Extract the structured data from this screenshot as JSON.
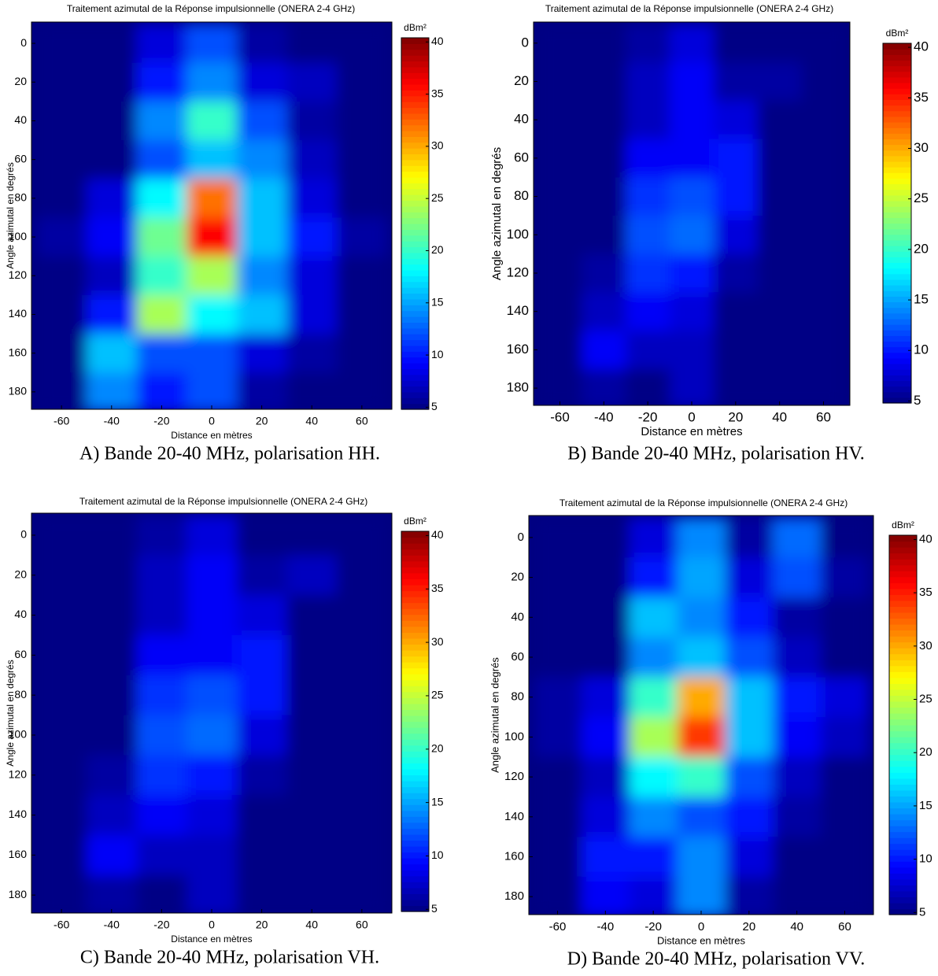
{
  "chart_data": [
    {
      "type": "heatmap",
      "title": "Traitement azimutal de la Réponse impulsionnelle  (ONERA 2-4 GHz)",
      "x_label": "Distance en mètres",
      "y_label": "Angle azimutal en degrés",
      "colorbar_label": "dBm²",
      "caption": "A) Bande 20-40 MHz, polarisation HH.",
      "colormap": "jet",
      "xlim": [
        -72,
        72
      ],
      "ylim": [
        -11,
        189
      ],
      "y_inverted": true,
      "clim": [
        4.8,
        40.4
      ],
      "xticks": [
        -60,
        -40,
        -20,
        0,
        20,
        40,
        60
      ],
      "yticks": [
        0,
        20,
        40,
        60,
        80,
        100,
        120,
        140,
        160,
        180
      ],
      "cticks": [
        5,
        10,
        15,
        20,
        25,
        30,
        35,
        40
      ],
      "x": [
        -60,
        -40,
        -20,
        0,
        20,
        40,
        60
      ],
      "y": [
        0,
        20,
        40,
        60,
        80,
        100,
        120,
        140,
        160,
        180
      ],
      "z": [
        [
          5,
          5,
          8,
          12,
          6,
          5,
          5
        ],
        [
          5,
          5,
          10,
          14,
          8,
          7,
          5
        ],
        [
          5,
          5,
          14,
          20,
          12,
          6,
          5
        ],
        [
          5,
          5,
          12,
          16,
          14,
          7,
          5
        ],
        [
          5,
          8,
          18,
          32,
          16,
          8,
          5
        ],
        [
          6,
          9,
          22,
          36,
          16,
          10,
          6
        ],
        [
          5,
          7,
          20,
          24,
          14,
          8,
          5
        ],
        [
          5,
          10,
          24,
          18,
          16,
          8,
          5
        ],
        [
          5,
          16,
          12,
          12,
          8,
          6,
          5
        ],
        [
          5,
          14,
          10,
          12,
          6,
          5,
          5
        ]
      ]
    },
    {
      "type": "heatmap",
      "title": "Traitement azimutal de la Réponse impulsionnelle  (ONERA 2-4 GHz)",
      "x_label": "Distance en mètres",
      "y_label": "Angle azimutal en degrés",
      "colorbar_label": "dBm²",
      "caption": "B) Bande 20-40 MHz, polarisation HV.",
      "colormap": "jet",
      "xlim": [
        -72,
        72
      ],
      "ylim": [
        -11,
        189
      ],
      "y_inverted": true,
      "clim": [
        4.8,
        40.4
      ],
      "xticks": [
        -60,
        -40,
        -20,
        0,
        20,
        40,
        60
      ],
      "yticks": [
        0,
        20,
        40,
        60,
        80,
        100,
        120,
        140,
        160,
        180
      ],
      "cticks": [
        5,
        10,
        15,
        20,
        25,
        30,
        35,
        40
      ],
      "x": [
        -60,
        -40,
        -20,
        0,
        20,
        40,
        60
      ],
      "y": [
        0,
        20,
        40,
        60,
        80,
        100,
        120,
        140,
        160,
        180
      ],
      "z": [
        [
          5,
          5,
          6,
          8,
          5,
          5,
          5
        ],
        [
          5,
          5,
          7,
          9,
          6,
          6,
          5
        ],
        [
          5,
          5,
          7,
          9,
          8,
          5,
          5
        ],
        [
          5,
          5,
          9,
          9,
          10,
          5,
          5
        ],
        [
          5,
          5,
          11,
          12,
          10,
          5,
          5
        ],
        [
          5,
          5,
          12,
          13,
          8,
          5,
          5
        ],
        [
          5,
          6,
          11,
          10,
          6,
          5,
          5
        ],
        [
          5,
          7,
          9,
          8,
          5,
          5,
          5
        ],
        [
          5,
          9,
          7,
          7,
          5,
          5,
          5
        ],
        [
          5,
          6,
          5,
          7,
          5,
          5,
          5
        ]
      ]
    },
    {
      "type": "heatmap",
      "title": "Traitement azimutal de la Réponse impulsionnelle  (ONERA 2-4 GHz)",
      "x_label": "Distance en mètres",
      "y_label": "Angle azimutal en degrés",
      "colorbar_label": "dBm²",
      "caption": "C) Bande 20-40 MHz, polarisation VH.",
      "colormap": "jet",
      "xlim": [
        -72,
        72
      ],
      "ylim": [
        -11,
        189
      ],
      "y_inverted": true,
      "clim": [
        4.8,
        40.4
      ],
      "xticks": [
        -60,
        -40,
        -20,
        0,
        20,
        40,
        60
      ],
      "yticks": [
        0,
        20,
        40,
        60,
        80,
        100,
        120,
        140,
        160,
        180
      ],
      "cticks": [
        5,
        10,
        15,
        20,
        25,
        30,
        35,
        40
      ],
      "x": [
        -60,
        -40,
        -20,
        0,
        20,
        40,
        60
      ],
      "y": [
        0,
        20,
        40,
        60,
        80,
        100,
        120,
        140,
        160,
        180
      ],
      "z": [
        [
          5,
          5,
          6,
          8,
          5,
          5,
          5
        ],
        [
          5,
          5,
          7,
          9,
          6,
          7,
          5
        ],
        [
          5,
          5,
          7,
          9,
          8,
          5,
          5
        ],
        [
          5,
          5,
          9,
          9,
          10,
          5,
          5
        ],
        [
          5,
          5,
          11,
          12,
          10,
          5,
          5
        ],
        [
          5,
          5,
          12,
          13,
          8,
          5,
          5
        ],
        [
          5,
          6,
          11,
          10,
          6,
          5,
          5
        ],
        [
          5,
          7,
          9,
          8,
          5,
          5,
          5
        ],
        [
          5,
          9,
          7,
          7,
          5,
          5,
          5
        ],
        [
          5,
          6,
          5,
          7,
          5,
          5,
          5
        ]
      ]
    },
    {
      "type": "heatmap",
      "title": "Traitement azimutal de la Réponse impulsionnelle  (ONERA 2-4 GHz)",
      "x_label": "Distance en mètres",
      "y_label": "Angle azimutal en degrés",
      "colorbar_label": "dBm²",
      "caption": "D) Bande 20-40 MHz, polarisation VV.",
      "colormap": "jet",
      "xlim": [
        -72,
        72
      ],
      "ylim": [
        -11,
        189
      ],
      "y_inverted": true,
      "clim": [
        4.8,
        40.4
      ],
      "xticks": [
        -60,
        -40,
        -20,
        0,
        20,
        40,
        60
      ],
      "yticks": [
        0,
        20,
        40,
        60,
        80,
        100,
        120,
        140,
        160,
        180
      ],
      "cticks": [
        5,
        10,
        15,
        20,
        25,
        30,
        35,
        40
      ],
      "x": [
        -60,
        -40,
        -20,
        0,
        20,
        40,
        60
      ],
      "y": [
        0,
        20,
        40,
        60,
        80,
        100,
        120,
        140,
        160,
        180
      ],
      "z": [
        [
          5,
          5,
          8,
          14,
          6,
          13,
          5
        ],
        [
          5,
          5,
          10,
          15,
          8,
          12,
          6
        ],
        [
          5,
          5,
          16,
          14,
          10,
          6,
          5
        ],
        [
          5,
          5,
          14,
          16,
          12,
          7,
          5
        ],
        [
          6,
          8,
          20,
          30,
          16,
          10,
          8
        ],
        [
          6,
          9,
          24,
          34,
          16,
          9,
          7
        ],
        [
          5,
          7,
          18,
          20,
          12,
          7,
          5
        ],
        [
          5,
          8,
          14,
          12,
          10,
          6,
          5
        ],
        [
          5,
          10,
          10,
          14,
          8,
          5,
          5
        ],
        [
          5,
          9,
          8,
          14,
          6,
          5,
          5
        ]
      ]
    }
  ]
}
